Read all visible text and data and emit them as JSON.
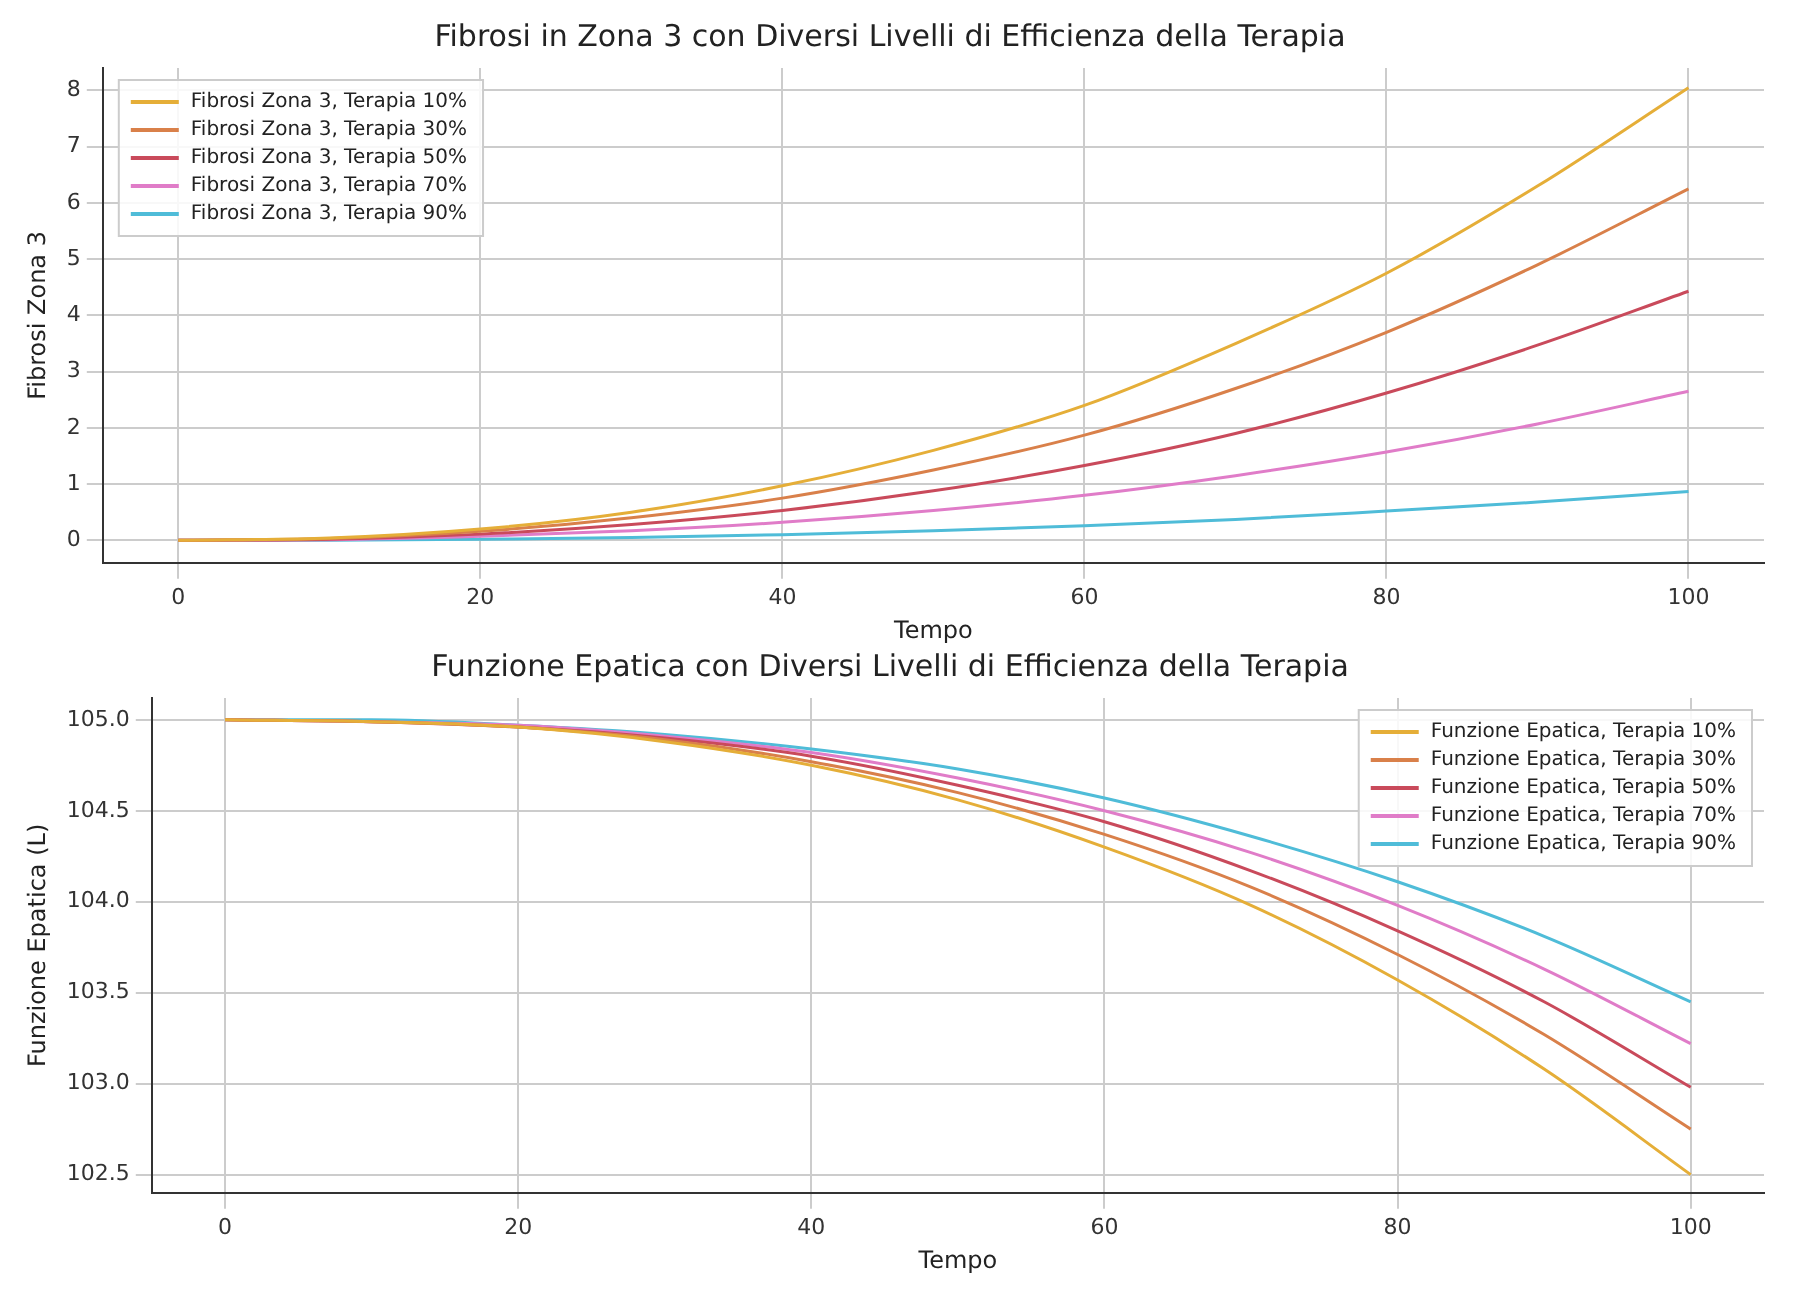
{
  "chart_data": [
    {
      "type": "line",
      "title": "Fibrosi in Zona 3 con Diversi Livelli di Efficienza della Terapia",
      "xlabel": "Tempo",
      "ylabel": "Fibrosi Zona 3",
      "x": [
        0,
        10,
        20,
        30,
        40,
        50,
        60,
        70,
        80,
        90,
        100
      ],
      "series": [
        {
          "name": "Fibrosi Zona 3, Terapia 10%",
          "color": "#e5ae38",
          "values": [
            0,
            0.04,
            0.2,
            0.5,
            0.97,
            1.6,
            2.4,
            3.5,
            4.75,
            6.3,
            8.05
          ]
        },
        {
          "name": "Fibrosi Zona 3, Terapia 30%",
          "color": "#d9804a",
          "values": [
            0,
            0.03,
            0.16,
            0.4,
            0.75,
            1.25,
            1.87,
            2.7,
            3.7,
            4.9,
            6.25
          ]
        },
        {
          "name": "Fibrosi Zona 3, Terapia 50%",
          "color": "#c94a5b",
          "values": [
            0,
            0.02,
            0.11,
            0.28,
            0.53,
            0.88,
            1.33,
            1.9,
            2.62,
            3.47,
            4.43
          ]
        },
        {
          "name": "Fibrosi Zona 3, Terapia 70%",
          "color": "#e07cc8",
          "values": [
            0,
            0.01,
            0.07,
            0.17,
            0.32,
            0.53,
            0.8,
            1.15,
            1.57,
            2.07,
            2.65
          ]
        },
        {
          "name": "Fibrosi Zona 3, Terapia 90%",
          "color": "#4fbcd8",
          "values": [
            0,
            0,
            0.02,
            0.05,
            0.1,
            0.17,
            0.26,
            0.37,
            0.52,
            0.68,
            0.87
          ]
        }
      ],
      "xlim": [
        -5,
        105
      ],
      "xticks": [
        0,
        20,
        40,
        60,
        80,
        100
      ],
      "ylim": [
        -0.4,
        8.4
      ],
      "yticks": [
        0,
        1,
        2,
        3,
        4,
        5,
        6,
        7,
        8
      ],
      "grid": true,
      "legend": "top left",
      "marker": "none",
      "line_style": "solid"
    },
    {
      "type": "line",
      "title": "Funzione Epatica con Diversi Livelli di Efficienza della Terapia",
      "xlabel": "Tempo",
      "ylabel": "Funzione Epatica (L)",
      "x": [
        0,
        10,
        20,
        30,
        40,
        50,
        60,
        70,
        80,
        90,
        100
      ],
      "series": [
        {
          "name": "Funzione Epatica, Terapia 10%",
          "color": "#e5ae38",
          "values": [
            105,
            104.99,
            104.96,
            104.88,
            104.75,
            104.56,
            104.3,
            103.98,
            103.57,
            103.08,
            102.5
          ]
        },
        {
          "name": "Funzione Epatica, Terapia 30%",
          "color": "#d9804a",
          "values": [
            105,
            104.99,
            104.96,
            104.89,
            104.77,
            104.6,
            104.37,
            104.08,
            103.71,
            103.27,
            102.75
          ]
        },
        {
          "name": "Funzione Epatica, Terapia 50%",
          "color": "#c94a5b",
          "values": [
            105,
            104.99,
            104.96,
            104.9,
            104.8,
            104.64,
            104.44,
            104.17,
            103.84,
            103.45,
            102.98
          ]
        },
        {
          "name": "Funzione Epatica, Terapia 70%",
          "color": "#e07cc8",
          "values": [
            105,
            104.99,
            104.97,
            104.91,
            104.82,
            104.68,
            104.5,
            104.27,
            103.98,
            103.63,
            103.22
          ]
        },
        {
          "name": "Funzione Epatica, Terapia 90%",
          "color": "#4fbcd8",
          "values": [
            105,
            105,
            104.97,
            104.92,
            104.84,
            104.73,
            104.57,
            104.36,
            104.11,
            103.81,
            103.45
          ]
        }
      ],
      "xlim": [
        -5,
        105
      ],
      "xticks": [
        0,
        20,
        40,
        60,
        80,
        100
      ],
      "ylim": [
        102.4,
        105.12
      ],
      "yticks": [
        {
          "value": 102.5,
          "label": "102.5"
        },
        {
          "value": 103,
          "label": "103.0"
        },
        {
          "value": 103.5,
          "label": "103.5"
        },
        {
          "value": 104,
          "label": "104.0"
        },
        {
          "value": 104.5,
          "label": "104.5"
        },
        {
          "value": 105,
          "label": "105.0"
        }
      ],
      "grid": true,
      "legend": "top right",
      "marker": "none",
      "line_style": "solid"
    }
  ]
}
